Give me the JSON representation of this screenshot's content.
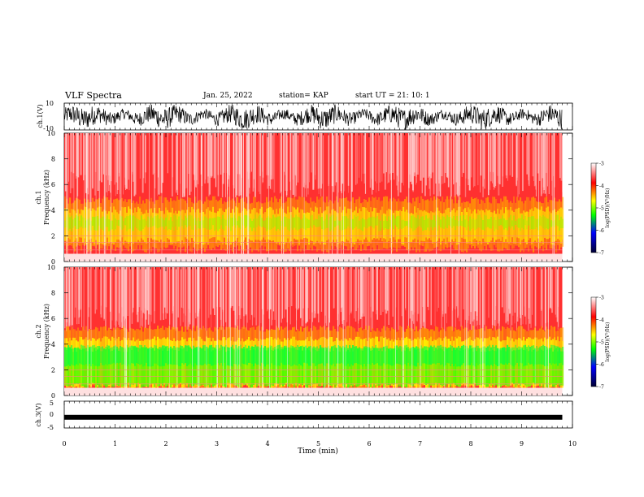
{
  "header": {
    "title": "VLF Spectra",
    "date": "Jan. 25, 2022",
    "station": "station= KAP",
    "start": "start UT =  21: 10: 1"
  },
  "colors": {
    "spectrogram_low": "#000099",
    "spectrogram_mid": "#00ff00",
    "spectrogram_high": "#ffffff",
    "waveform": "#000000"
  },
  "chart_data": [
    {
      "id": "ch1-waveform",
      "type": "line",
      "ylabel": "ch.1(V)",
      "ylim": [
        -10,
        10
      ],
      "yticks": [
        "10",
        "-10"
      ],
      "xlim": [
        0,
        10
      ],
      "description_values": "dense oscillating waveform spanning approx -8 to 8 V over 0-9.8 min"
    },
    {
      "id": "ch1-spectrogram",
      "type": "heatmap",
      "ylabel": "ch.1 Frequency (kHz)",
      "ylim": [
        0,
        10
      ],
      "yticks": [
        "0",
        "2",
        "4",
        "6",
        "8",
        "10"
      ],
      "xlim": [
        0,
        10
      ],
      "colorbar": {
        "label": "log(PSD)(V²/Hz)",
        "range": [
          -7,
          -3
        ],
        "ticks": [
          "-3",
          "-4",
          "-5",
          "-6",
          "-7"
        ]
      }
    },
    {
      "id": "ch2-spectrogram",
      "type": "heatmap",
      "ylabel": "ch.2 Frequency (kHz)",
      "ylim": [
        0,
        10
      ],
      "yticks": [
        "0",
        "2",
        "4",
        "6",
        "8",
        "10"
      ],
      "xlim": [
        0,
        10
      ],
      "colorbar": {
        "label": "log(PSD)(V²/Hz)",
        "range": [
          -7,
          -3
        ],
        "ticks": [
          "-3",
          "-4",
          "-5",
          "-6",
          "-7"
        ]
      }
    },
    {
      "id": "ch3-waveform",
      "type": "line",
      "ylabel": "ch.3(V)",
      "ylim": [
        -5,
        5
      ],
      "yticks": [
        "5",
        "0",
        "-5"
      ],
      "xlim": [
        0,
        10
      ],
      "xlabel": "Time (min)",
      "xticks": [
        "0",
        "1",
        "2",
        "3",
        "4",
        "5",
        "6",
        "7",
        "8",
        "9",
        "10"
      ],
      "level": -1
    }
  ]
}
